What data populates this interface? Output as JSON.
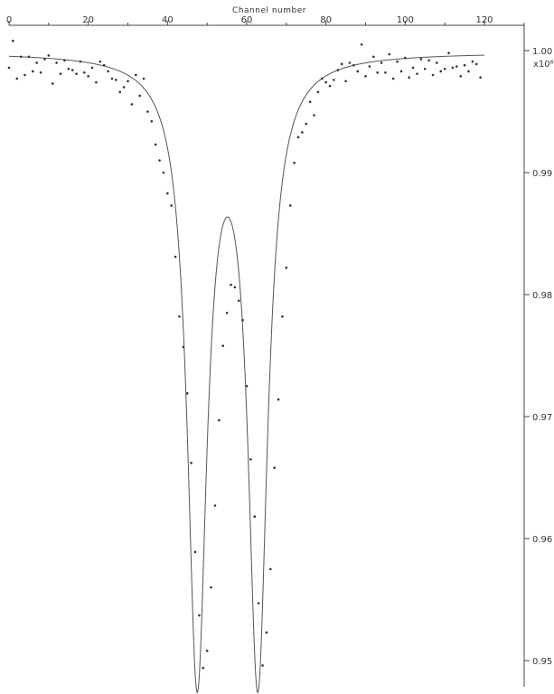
{
  "chart_data": {
    "type": "scatter",
    "title": "",
    "xlabel": "Channel number",
    "ylabel": "",
    "y_multiplier_label": "x10⁶",
    "xlim": [
      0,
      130
    ],
    "ylim": [
      0.9485,
      1.0015
    ],
    "x_ticks": [
      {
        "value": 0,
        "label": "0"
      },
      {
        "value": 20,
        "label": "20"
      },
      {
        "value": 40,
        "label": "40"
      },
      {
        "value": 60,
        "label": "60"
      },
      {
        "value": 80,
        "label": "80"
      },
      {
        "value": 100,
        "label": "100"
      },
      {
        "value": 120,
        "label": "120"
      }
    ],
    "y_ticks": [
      {
        "value": 1.0,
        "label": "1.00"
      },
      {
        "value": 0.99,
        "label": "0.99"
      },
      {
        "value": 0.98,
        "label": "0.98"
      },
      {
        "value": 0.97,
        "label": "0.97"
      },
      {
        "value": 0.96,
        "label": "0.96"
      },
      {
        "value": 0.95,
        "label": "0.95"
      }
    ],
    "grid": false,
    "fit": {
      "baseline": 0.99985,
      "peaks": [
        {
          "center": 47.5,
          "depth": 0.0506,
          "hwhm": 3.0
        },
        {
          "center": 62.8,
          "depth": 0.0506,
          "hwhm": 3.0
        }
      ]
    },
    "series": [
      {
        "points": [
          [
            0,
            0.9986
          ],
          [
            1,
            1.0008
          ],
          [
            2,
            0.9977
          ],
          [
            3,
            0.9995
          ],
          [
            4,
            0.998
          ],
          [
            5,
            0.9995
          ],
          [
            6,
            0.9983
          ],
          [
            7,
            0.999
          ],
          [
            8,
            0.9982
          ],
          [
            9,
            0.9993
          ],
          [
            10,
            0.9996
          ],
          [
            11,
            0.9973
          ],
          [
            12,
            0.999
          ],
          [
            13,
            0.9981
          ],
          [
            14,
            0.9992
          ],
          [
            15,
            0.9985
          ],
          [
            16,
            0.9984
          ],
          [
            17,
            0.9981
          ],
          [
            18,
            0.9991
          ],
          [
            19,
            0.9982
          ],
          [
            20,
            0.9979
          ],
          [
            21,
            0.9986
          ],
          [
            22,
            0.9974
          ],
          [
            23,
            0.9991
          ],
          [
            24,
            0.9988
          ],
          [
            25,
            0.9983
          ],
          [
            26,
            0.9977
          ],
          [
            27,
            0.9976
          ],
          [
            28,
            0.9966
          ],
          [
            29,
            0.997
          ],
          [
            30,
            0.9975
          ],
          [
            31,
            0.9956
          ],
          [
            32,
            0.998
          ],
          [
            33,
            0.9963
          ],
          [
            34,
            0.9977
          ],
          [
            35,
            0.995
          ],
          [
            36,
            0.9942
          ],
          [
            37,
            0.9923
          ],
          [
            38,
            0.991
          ],
          [
            39,
            0.99
          ],
          [
            40,
            0.9883
          ],
          [
            41,
            0.9873
          ],
          [
            42,
            0.9831
          ],
          [
            43,
            0.9782
          ],
          [
            44,
            0.9757
          ],
          [
            45,
            0.9719
          ],
          [
            46,
            0.9662
          ],
          [
            47,
            0.9589
          ],
          [
            48,
            0.9537
          ],
          [
            49,
            0.9494
          ],
          [
            50,
            0.9508
          ],
          [
            51,
            0.956
          ],
          [
            52,
            0.9627
          ],
          [
            53,
            0.9697
          ],
          [
            54,
            0.9758
          ],
          [
            55,
            0.9785
          ],
          [
            56,
            0.9808
          ],
          [
            57,
            0.9806
          ],
          [
            58,
            0.9795
          ],
          [
            59,
            0.9779
          ],
          [
            60,
            0.9725
          ],
          [
            61,
            0.9665
          ],
          [
            62,
            0.9618
          ],
          [
            63,
            0.9547
          ],
          [
            64,
            0.9496
          ],
          [
            65,
            0.9523
          ],
          [
            66,
            0.9575
          ],
          [
            67,
            0.9658
          ],
          [
            68,
            0.9714
          ],
          [
            69,
            0.9782
          ],
          [
            70,
            0.9822
          ],
          [
            71,
            0.9873
          ],
          [
            72,
            0.9908
          ],
          [
            73,
            0.9929
          ],
          [
            74,
            0.9933
          ],
          [
            75,
            0.994
          ],
          [
            76,
            0.9958
          ],
          [
            77,
            0.9947
          ],
          [
            78,
            0.9966
          ],
          [
            79,
            0.9977
          ],
          [
            80,
            0.9974
          ],
          [
            81,
            0.9971
          ],
          [
            82,
            0.9976
          ],
          [
            83,
            0.9984
          ],
          [
            84,
            0.9989
          ],
          [
            85,
            0.9975
          ],
          [
            86,
            0.999
          ],
          [
            87,
            0.9988
          ],
          [
            88,
            0.9983
          ],
          [
            89,
            1.0005
          ],
          [
            90,
            0.9979
          ],
          [
            91,
            0.9987
          ],
          [
            92,
            0.9995
          ],
          [
            93,
            0.9982
          ],
          [
            94,
            0.999
          ],
          [
            95,
            0.9982
          ],
          [
            96,
            0.9997
          ],
          [
            97,
            0.9977
          ],
          [
            98,
            0.9991
          ],
          [
            99,
            0.9983
          ],
          [
            100,
            0.9994
          ],
          [
            101,
            0.9978
          ],
          [
            102,
            0.9986
          ],
          [
            103,
            0.9981
          ],
          [
            104,
            0.9993
          ],
          [
            105,
            0.9985
          ],
          [
            106,
            0.9992
          ],
          [
            107,
            0.998
          ],
          [
            108,
            0.999
          ],
          [
            109,
            0.9983
          ],
          [
            110,
            0.9985
          ],
          [
            111,
            0.9998
          ],
          [
            112,
            0.9986
          ],
          [
            113,
            0.9987
          ],
          [
            114,
            0.9979
          ],
          [
            115,
            0.9988
          ],
          [
            116,
            0.9983
          ],
          [
            117,
            0.9991
          ],
          [
            118,
            0.9989
          ],
          [
            119,
            0.9978
          ]
        ]
      }
    ]
  }
}
